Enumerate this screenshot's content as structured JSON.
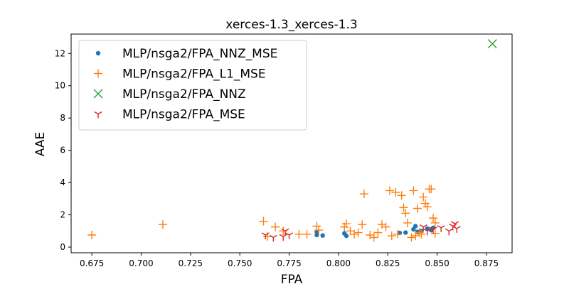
{
  "chart_data": {
    "type": "scatter",
    "title": "xerces-1.3_xerces-1.3",
    "xlabel": "FPA",
    "ylabel": "AAE",
    "xlim": [
      0.6645,
      0.888
    ],
    "ylim": [
      -0.35,
      13.2
    ],
    "xticks": [
      "0.675",
      "0.700",
      "0.725",
      "0.750",
      "0.775",
      "0.800",
      "0.825",
      "0.850",
      "0.875"
    ],
    "yticks": [
      "0",
      "2",
      "4",
      "6",
      "8",
      "10",
      "12"
    ],
    "grid": false,
    "legend_position": "top-left",
    "series": [
      {
        "name": "MLP/nsga2/FPA_NNZ_MSE",
        "marker": "dot",
        "color": "#1f77b4",
        "points": [
          [
            0.789,
            0.95
          ],
          [
            0.789,
            0.75
          ],
          [
            0.792,
            0.72
          ],
          [
            0.803,
            0.85
          ],
          [
            0.804,
            0.7
          ],
          [
            0.831,
            0.88
          ],
          [
            0.834,
            0.9
          ],
          [
            0.838,
            1.1
          ],
          [
            0.839,
            1.3
          ],
          [
            0.84,
            0.95
          ],
          [
            0.842,
            1.0
          ],
          [
            0.845,
            1.15
          ],
          [
            0.847,
            1.05
          ],
          [
            0.848,
            1.2
          ]
        ]
      },
      {
        "name": "MLP/nsga2/FPA_L1_MSE",
        "marker": "plus",
        "color": "#ff7f0e",
        "points": [
          [
            0.675,
            0.75
          ],
          [
            0.711,
            1.4
          ],
          [
            0.762,
            1.6
          ],
          [
            0.764,
            0.65
          ],
          [
            0.768,
            1.25
          ],
          [
            0.772,
            1.0
          ],
          [
            0.78,
            0.8
          ],
          [
            0.784,
            0.8
          ],
          [
            0.789,
            1.3
          ],
          [
            0.79,
            1.05
          ],
          [
            0.803,
            1.25
          ],
          [
            0.804,
            1.45
          ],
          [
            0.806,
            1.0
          ],
          [
            0.808,
            0.8
          ],
          [
            0.81,
            0.9
          ],
          [
            0.812,
            1.4
          ],
          [
            0.813,
            3.3
          ],
          [
            0.816,
            0.75
          ],
          [
            0.818,
            0.6
          ],
          [
            0.82,
            0.9
          ],
          [
            0.822,
            1.4
          ],
          [
            0.824,
            1.25
          ],
          [
            0.826,
            3.5
          ],
          [
            0.827,
            0.7
          ],
          [
            0.829,
            3.4
          ],
          [
            0.83,
            0.8
          ],
          [
            0.832,
            3.2
          ],
          [
            0.833,
            2.45
          ],
          [
            0.834,
            2.1
          ],
          [
            0.835,
            1.5
          ],
          [
            0.837,
            0.6
          ],
          [
            0.838,
            3.5
          ],
          [
            0.839,
            0.7
          ],
          [
            0.84,
            2.4
          ],
          [
            0.841,
            0.9
          ],
          [
            0.842,
            0.8
          ],
          [
            0.843,
            3.1
          ],
          [
            0.844,
            2.7
          ],
          [
            0.845,
            2.5
          ],
          [
            0.846,
            3.6
          ],
          [
            0.847,
            3.6
          ],
          [
            0.848,
            1.8
          ],
          [
            0.849,
            1.5
          ],
          [
            0.849,
            0.85
          ]
        ]
      },
      {
        "name": "MLP/nsga2/FPA_NNZ",
        "marker": "x",
        "color": "#2ca02c",
        "points": [
          [
            0.878,
            12.6
          ]
        ]
      },
      {
        "name": "MLP/nsga2/FPA_MSE",
        "marker": "tri",
        "color": "#d62728",
        "points": [
          [
            0.763,
            0.75
          ],
          [
            0.767,
            0.6
          ],
          [
            0.772,
            0.65
          ],
          [
            0.773,
            1.0
          ],
          [
            0.775,
            0.75
          ],
          [
            0.843,
            1.25
          ],
          [
            0.845,
            1.0
          ],
          [
            0.848,
            1.1
          ],
          [
            0.852,
            1.2
          ],
          [
            0.856,
            1.0
          ],
          [
            0.858,
            1.3
          ],
          [
            0.859,
            1.45
          ],
          [
            0.86,
            1.15
          ]
        ]
      }
    ]
  }
}
